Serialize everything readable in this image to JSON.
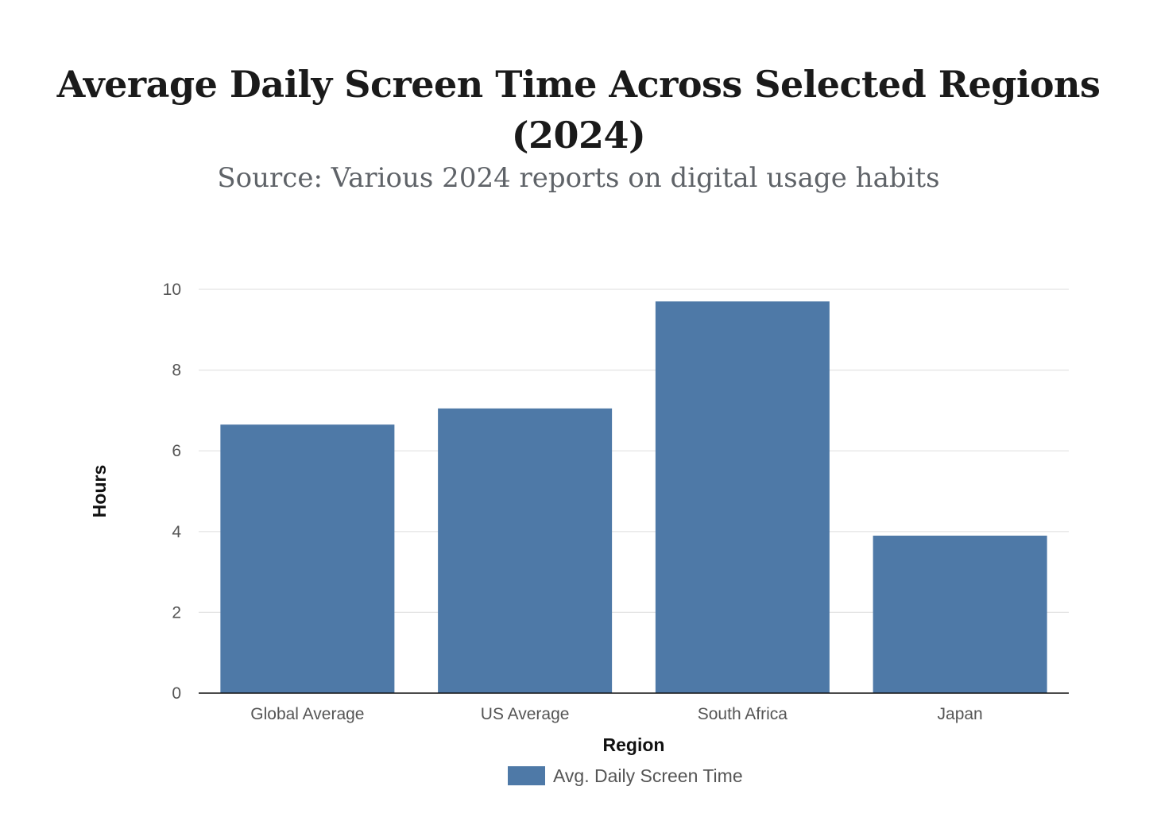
{
  "chart_data": {
    "type": "bar",
    "title": "Average Daily Screen Time Across Selected Regions (2024)",
    "subtitle": "Source: Various 2024 reports on digital usage habits",
    "xlabel": "Region",
    "ylabel": "Hours",
    "categories": [
      "Global Average",
      "US Average",
      "South Africa",
      "Japan"
    ],
    "series": [
      {
        "name": "Avg. Daily Screen Time",
        "color": "#4e79a7",
        "values": [
          6.65,
          7.05,
          9.7,
          3.9
        ]
      }
    ],
    "ylim": [
      0,
      10
    ],
    "yticks": [
      "0",
      "2",
      "4",
      "6",
      "8",
      "10"
    ],
    "grid": true,
    "legend": "bottom-center"
  }
}
